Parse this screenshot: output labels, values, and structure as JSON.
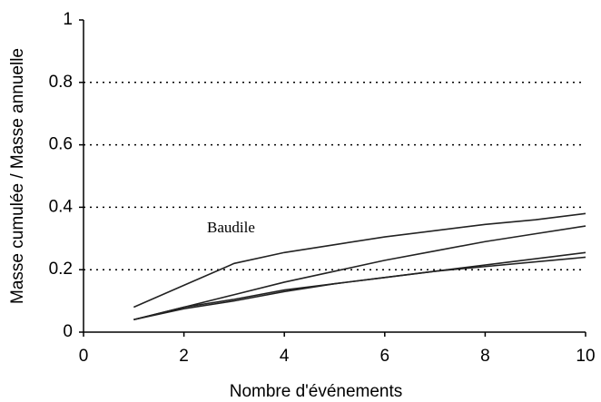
{
  "chart_data": {
    "type": "line",
    "x_label": "Nombre d'événements",
    "y_label": "Masse cumulée / Masse annuelle",
    "x": [
      1,
      2,
      3,
      4,
      5,
      6,
      7,
      8,
      9,
      10
    ],
    "series": [
      {
        "color": "#222222",
        "values": [
          0.08,
          0.15,
          0.22,
          0.255,
          0.28,
          0.305,
          0.325,
          0.345,
          0.36,
          0.38
        ]
      },
      {
        "color": "#222222",
        "values": [
          0.04,
          0.08,
          0.12,
          0.16,
          0.195,
          0.23,
          0.26,
          0.29,
          0.315,
          0.34
        ]
      },
      {
        "color": "#222222",
        "values": [
          0.04,
          0.08,
          0.105,
          0.135,
          0.155,
          0.175,
          0.195,
          0.215,
          0.235,
          0.255
        ]
      },
      {
        "color": "#222222",
        "values": [
          0.04,
          0.075,
          0.1,
          0.13,
          0.155,
          0.175,
          0.195,
          0.21,
          0.225,
          0.24
        ]
      }
    ],
    "annotations": [
      "Baudile"
    ],
    "xlim": [
      0,
      10
    ],
    "xticks": [
      0,
      2,
      4,
      6,
      8,
      10
    ],
    "ylim": [
      0,
      1
    ],
    "yticks": [
      0,
      0.2,
      0.4,
      0.6,
      0.8,
      1
    ],
    "grid": true
  }
}
